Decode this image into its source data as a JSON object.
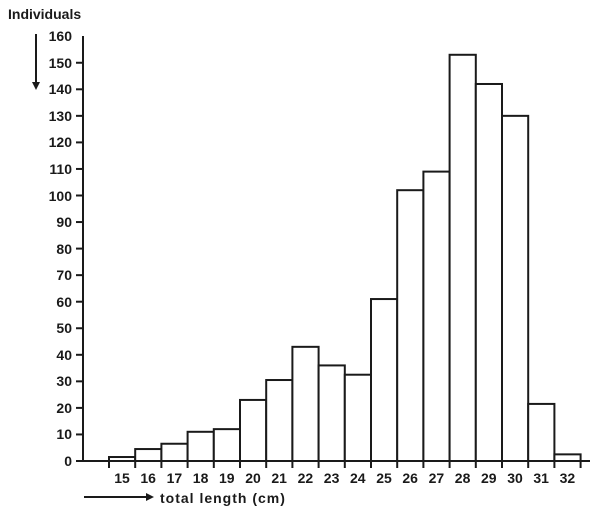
{
  "chart_data": {
    "type": "bar",
    "title": "",
    "xlabel": "total length (cm)",
    "ylabel": "Individuals",
    "ylim": [
      0,
      160
    ],
    "yticks": [
      0,
      10,
      20,
      30,
      40,
      50,
      60,
      70,
      80,
      90,
      100,
      110,
      120,
      130,
      140,
      150,
      160
    ],
    "categories": [
      "15",
      "16",
      "17",
      "18",
      "19",
      "20",
      "21",
      "22",
      "23",
      "24",
      "25",
      "26",
      "27",
      "28",
      "29",
      "30",
      "31",
      "32"
    ],
    "values": [
      1.5,
      4.5,
      6.5,
      11,
      12,
      23,
      30.5,
      43,
      36,
      32.5,
      61,
      102,
      109,
      153,
      142,
      130,
      21.5,
      2.5
    ],
    "grid": false,
    "legend": null
  },
  "labels": {
    "ylabel": "Individuals",
    "xlabel": "total length (cm)"
  }
}
